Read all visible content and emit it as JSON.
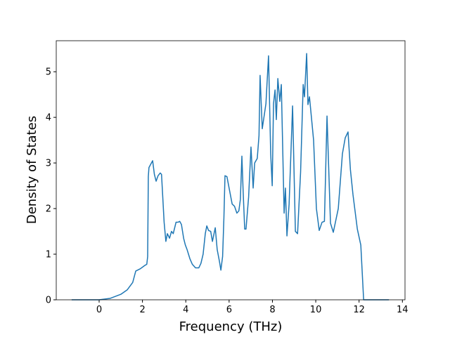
{
  "chart_data": {
    "type": "line",
    "x_label": "Frequency (THz)",
    "y_label": "Density of States",
    "x": [
      -1.27,
      0,
      0.5,
      1.0,
      1.3,
      1.55,
      1.69,
      1.9,
      2.1,
      2.2,
      2.24,
      2.27,
      2.3,
      2.47,
      2.55,
      2.63,
      2.72,
      2.82,
      2.88,
      2.92,
      3.0,
      3.08,
      3.15,
      3.25,
      3.34,
      3.42,
      3.55,
      3.64,
      3.72,
      3.8,
      3.9,
      3.98,
      4.06,
      4.19,
      4.3,
      4.45,
      4.6,
      4.7,
      4.8,
      4.9,
      4.97,
      5.05,
      5.15,
      5.23,
      5.36,
      5.45,
      5.55,
      5.62,
      5.7,
      5.76,
      5.81,
      5.9,
      6.0,
      6.14,
      6.25,
      6.36,
      6.45,
      6.52,
      6.59,
      6.65,
      6.72,
      6.78,
      6.9,
      7.01,
      7.11,
      7.18,
      7.3,
      7.38,
      7.43,
      7.53,
      7.7,
      7.82,
      7.92,
      7.99,
      8.05,
      8.12,
      8.18,
      8.25,
      8.34,
      8.41,
      8.54,
      8.6,
      8.67,
      8.77,
      8.93,
      9.06,
      9.16,
      9.3,
      9.42,
      9.48,
      9.58,
      9.64,
      9.71,
      9.9,
      10.03,
      10.16,
      10.29,
      10.4,
      10.52,
      10.68,
      10.81,
      11.04,
      11.23,
      11.36,
      11.49,
      11.6,
      11.72,
      11.92,
      12.08,
      12.21,
      13.38
    ],
    "values": [
      0,
      0,
      0.03,
      0.12,
      0.22,
      0.38,
      0.63,
      0.68,
      0.75,
      0.78,
      0.95,
      2.7,
      2.9,
      3.05,
      2.75,
      2.6,
      2.72,
      2.78,
      2.75,
      2.4,
      1.7,
      1.28,
      1.45,
      1.35,
      1.5,
      1.45,
      1.7,
      1.7,
      1.72,
      1.65,
      1.35,
      1.2,
      1.1,
      0.9,
      0.78,
      0.7,
      0.7,
      0.8,
      1.0,
      1.45,
      1.62,
      1.52,
      1.5,
      1.28,
      1.58,
      1.1,
      0.85,
      0.65,
      0.95,
      1.8,
      2.72,
      2.7,
      2.45,
      2.1,
      2.05,
      1.9,
      1.95,
      2.2,
      3.15,
      2.35,
      1.55,
      1.55,
      2.25,
      3.35,
      2.45,
      3.0,
      3.1,
      3.6,
      4.92,
      3.75,
      4.3,
      5.35,
      3.2,
      2.5,
      4.3,
      4.6,
      3.95,
      4.85,
      4.35,
      4.72,
      1.9,
      2.45,
      1.4,
      2.1,
      4.25,
      1.5,
      1.45,
      2.8,
      4.72,
      4.45,
      5.4,
      4.28,
      4.45,
      3.5,
      2.0,
      1.52,
      1.7,
      1.72,
      4.03,
      1.68,
      1.48,
      2.0,
      3.2,
      3.55,
      3.68,
      2.85,
      2.3,
      1.55,
      1.2,
      0,
      0
    ],
    "color": "#1f77b4",
    "xlim": [
      -1.98,
      14.12
    ],
    "xticks": [
      0,
      2,
      4,
      6,
      8,
      10,
      12,
      14
    ],
    "ylim": [
      0,
      5.68
    ],
    "yticks": [
      0,
      1,
      2,
      3,
      4,
      5
    ],
    "grid": false
  }
}
